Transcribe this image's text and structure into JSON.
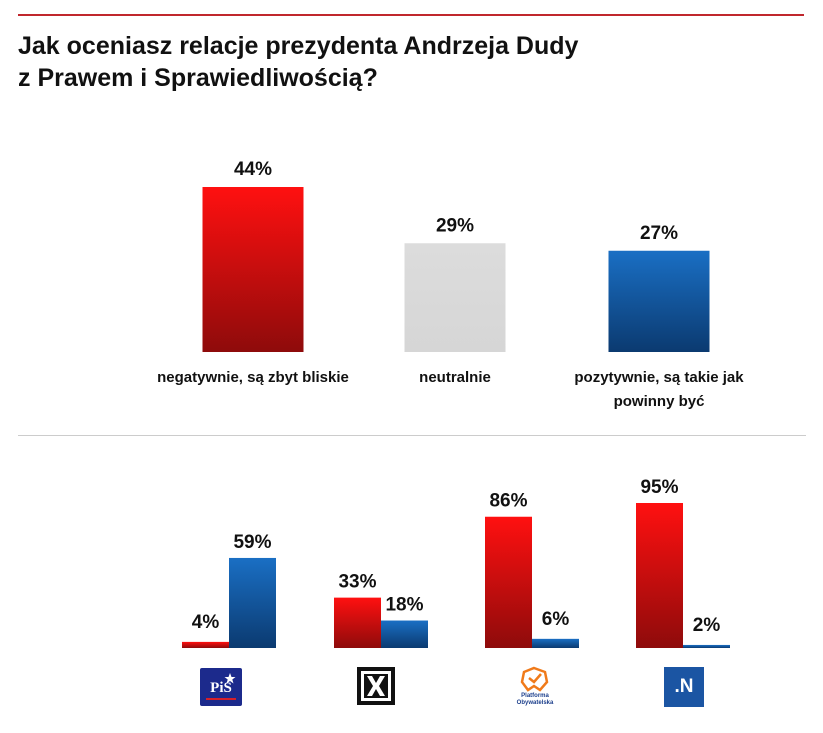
{
  "title": {
    "line1": "Jak oceniasz relacje prezydenta Andrzeja Dudy",
    "line2": "z Prawem i Sprawiedliwością?"
  },
  "colors": {
    "negative": "#e8151b",
    "neutral": "#d9d9d9",
    "positive": "#1565b5",
    "rule": "#c0272d"
  },
  "chart_data": [
    {
      "type": "bar",
      "categories": [
        [
          "negatywnie, są zbyt bliskie"
        ],
        [
          "neutralnie"
        ],
        [
          "pozytywnie, są takie jak",
          "powinny być"
        ]
      ],
      "values": [
        44,
        29,
        27
      ],
      "value_labels": [
        "44%",
        "29%",
        "27%"
      ],
      "bar_colors": [
        "negative",
        "neutral",
        "positive"
      ],
      "ylim": [
        0,
        50
      ],
      "grid": false,
      "legend": "none"
    },
    {
      "type": "bar",
      "categories": [
        "PiS",
        "Kukiz'15",
        "Platforma Obywatelska",
        "Nowoczesna"
      ],
      "series": [
        {
          "color": "negative",
          "values": [
            4,
            33,
            86,
            95
          ],
          "value_labels": [
            "4%",
            "33%",
            "86%",
            "95%"
          ]
        },
        {
          "color": "positive",
          "values": [
            59,
            18,
            6,
            2
          ],
          "value_labels": [
            "59%",
            "18%",
            "6%",
            "2%"
          ]
        }
      ],
      "ylim": [
        0,
        100
      ],
      "grid": false,
      "legend": "none"
    }
  ],
  "logos": {
    "pis": {
      "text": "PiS",
      "icon": "pis-logo"
    },
    "kukiz": {
      "text": "",
      "icon": "kukiz-logo"
    },
    "po": {
      "text": "Platforma Obywatelska",
      "line1": "Platforma",
      "line2": "Obywatelska",
      "icon": "po-logo"
    },
    "nowoczesna": {
      "text": ".N",
      "icon": "nowoczesna-logo"
    }
  }
}
